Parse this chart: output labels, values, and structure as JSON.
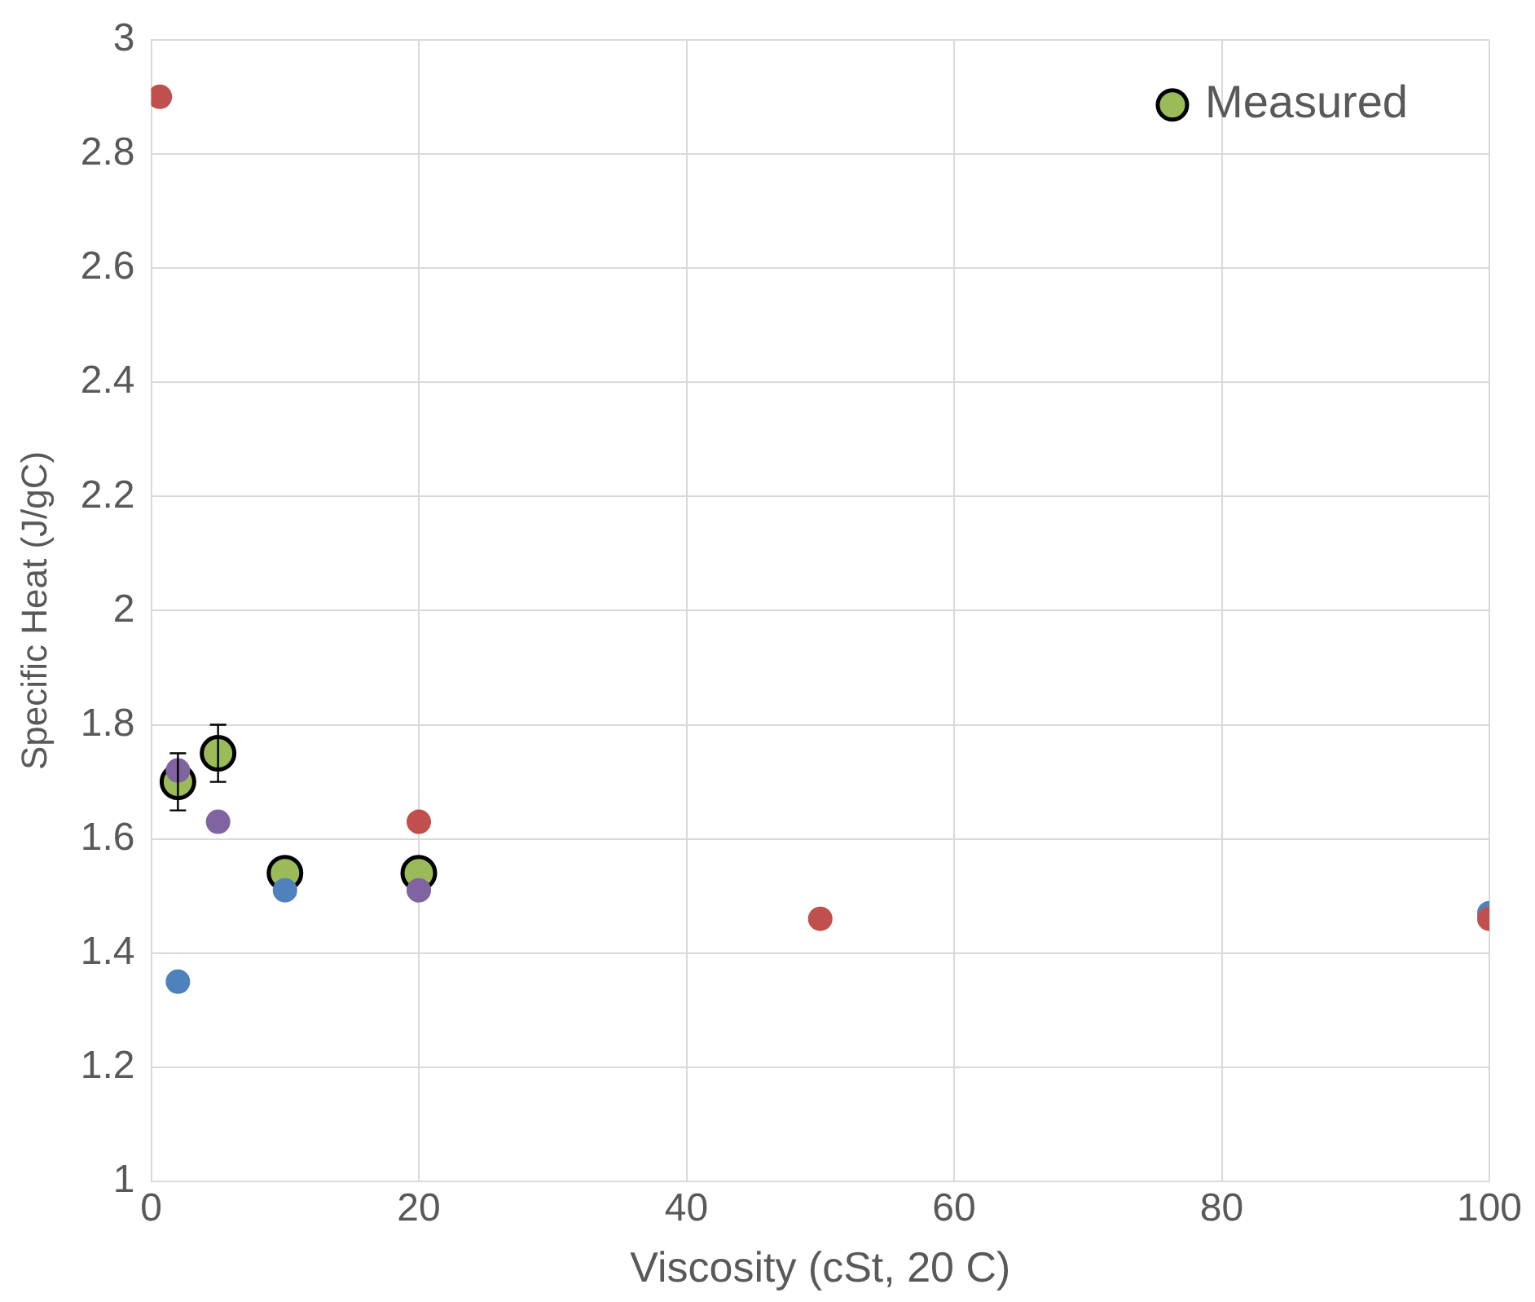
{
  "chart_data": {
    "type": "scatter",
    "xlabel": "Viscosity (cSt, 20 C)",
    "ylabel": "Specific Heat (J/gC)",
    "xlim": [
      0,
      100
    ],
    "xticks": [
      0,
      20,
      40,
      60,
      80,
      100
    ],
    "ylim": [
      1,
      3
    ],
    "yticks": [
      1,
      1.2,
      1.4,
      1.6,
      1.8,
      2,
      2.2,
      2.4,
      2.6,
      2.8,
      3
    ],
    "grid": true,
    "legend": "top right",
    "marker": "circle",
    "series": [
      {
        "name": "Measured",
        "color": "#9bbb59",
        "x": [
          2,
          5,
          10,
          20
        ],
        "values": [
          1.7,
          1.75,
          1.54,
          1.54
        ],
        "errors": [
          0.05,
          0.05,
          null,
          null
        ]
      },
      {
        "color": "#8064a2",
        "x": [
          2,
          5,
          20
        ],
        "values": [
          1.72,
          1.63,
          1.51
        ]
      },
      {
        "color": "#c0504d",
        "x": [
          0.65,
          20,
          50,
          100
        ],
        "values": [
          2.9,
          1.63,
          1.46,
          1.46
        ]
      },
      {
        "color": "#4f81bd",
        "x": [
          2,
          10,
          100
        ],
        "values": [
          1.35,
          1.51,
          1.47
        ]
      }
    ]
  }
}
